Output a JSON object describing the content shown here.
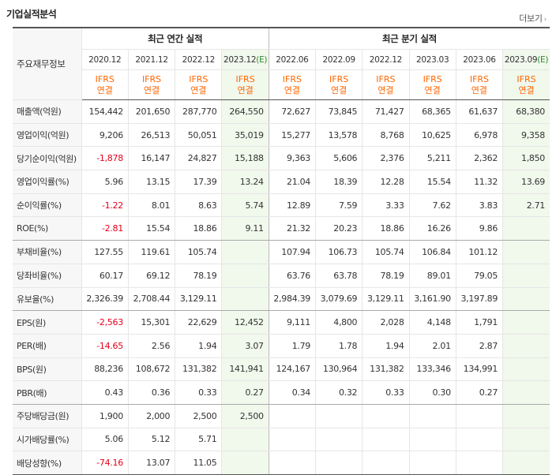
{
  "title": "기업실적분석",
  "more_label": "더보기",
  "header": {
    "row_label": "주요재무정보",
    "annual_group": "최근 연간 실적",
    "quarterly_group": "최근 분기 실적",
    "ifrs_top": "IFRS",
    "ifrs_bottom": "연결",
    "annual_periods": [
      "2020.12",
      "2021.12",
      "2022.12",
      "2023.12"
    ],
    "quarterly_periods": [
      "2022.06",
      "2022.09",
      "2022.12",
      "2023.03",
      "2023.06",
      "2023.09"
    ],
    "estimate_mark": "(E)"
  },
  "rows": [
    {
      "label": "매출액(억원)",
      "values": [
        "154,442",
        "201,650",
        "287,770",
        "264,550",
        "72,627",
        "73,845",
        "71,427",
        "68,365",
        "61,637",
        "68,380"
      ]
    },
    {
      "label": "영업이익(억원)",
      "values": [
        "9,206",
        "26,513",
        "50,051",
        "35,019",
        "15,277",
        "13,578",
        "8,768",
        "10,625",
        "6,978",
        "9,358"
      ]
    },
    {
      "label": "당기순이익(억원)",
      "values": [
        "-1,878",
        "16,147",
        "24,827",
        "15,188",
        "9,363",
        "5,606",
        "2,376",
        "5,211",
        "2,362",
        "1,850"
      ]
    },
    {
      "label": "영업이익률(%)",
      "values": [
        "5.96",
        "13.15",
        "17.39",
        "13.24",
        "21.04",
        "18.39",
        "12.28",
        "15.54",
        "11.32",
        "13.69"
      ]
    },
    {
      "label": "순이익률(%)",
      "values": [
        "-1.22",
        "8.01",
        "8.63",
        "5.74",
        "12.89",
        "7.59",
        "3.33",
        "7.62",
        "3.83",
        "2.71"
      ]
    },
    {
      "label": "ROE(%)",
      "values": [
        "-2.81",
        "15.54",
        "18.86",
        "9.11",
        "21.32",
        "20.23",
        "18.86",
        "16.26",
        "9.86",
        ""
      ]
    },
    {
      "label": "부채비율(%)",
      "values": [
        "127.55",
        "119.61",
        "105.74",
        "",
        "107.94",
        "106.73",
        "105.74",
        "106.84",
        "101.12",
        ""
      ]
    },
    {
      "label": "당좌비율(%)",
      "values": [
        "60.17",
        "69.12",
        "78.19",
        "",
        "63.76",
        "63.78",
        "78.19",
        "89.01",
        "79.05",
        ""
      ]
    },
    {
      "label": "유보율(%)",
      "values": [
        "2,326.39",
        "2,708.44",
        "3,129.11",
        "",
        "2,984.39",
        "3,079.69",
        "3,129.11",
        "3,161.90",
        "3,197.89",
        ""
      ]
    },
    {
      "label": "EPS(원)",
      "values": [
        "-2,563",
        "15,301",
        "22,629",
        "12,452",
        "9,111",
        "4,800",
        "2,028",
        "4,148",
        "1,791",
        ""
      ]
    },
    {
      "label": "PER(배)",
      "values": [
        "-14.65",
        "2.56",
        "1.94",
        "3.07",
        "1.79",
        "1.78",
        "1.94",
        "2.01",
        "2.87",
        ""
      ]
    },
    {
      "label": "BPS(원)",
      "values": [
        "88,236",
        "108,672",
        "131,382",
        "141,941",
        "124,167",
        "130,964",
        "131,382",
        "133,346",
        "134,991",
        ""
      ]
    },
    {
      "label": "PBR(배)",
      "values": [
        "0.43",
        "0.36",
        "0.33",
        "0.27",
        "0.34",
        "0.32",
        "0.33",
        "0.30",
        "0.27",
        ""
      ]
    },
    {
      "label": "주당배당금(원)",
      "values": [
        "1,900",
        "2,000",
        "2,500",
        "2,500",
        "",
        "",
        "",
        "",
        "",
        ""
      ]
    },
    {
      "label": "시가배당률(%)",
      "values": [
        "5.06",
        "5.12",
        "5.71",
        "",
        "",
        "",
        "",
        "",
        "",
        ""
      ]
    },
    {
      "label": "배당성향(%)",
      "values": [
        "-74.16",
        "13.07",
        "11.05",
        "",
        "",
        "",
        "",
        "",
        "",
        ""
      ]
    }
  ],
  "colors": {
    "ifrs": "#ff6600",
    "negative": "#e5001b",
    "estimate_bg": "#f1f8ec",
    "estimate_mark": "#2d8a2d"
  }
}
